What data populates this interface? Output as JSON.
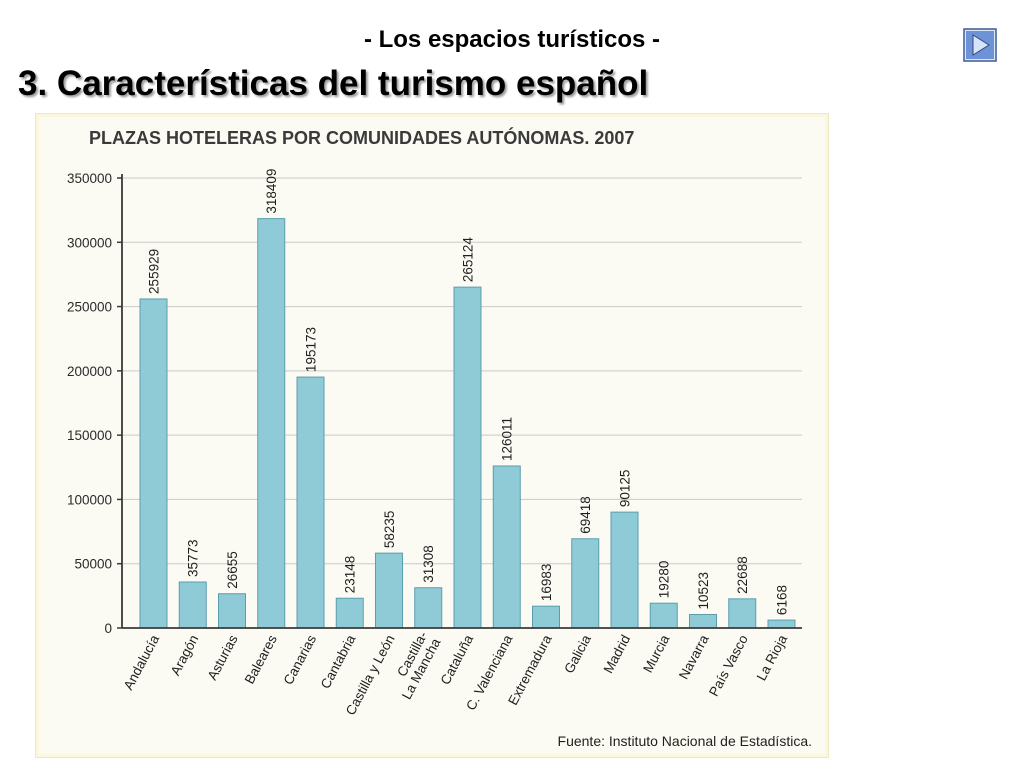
{
  "slide": {
    "subtitle": "- Los espacios turísticos -",
    "title": "3. Características del turismo español",
    "next_icon": "play-forward-icon"
  },
  "colors": {
    "bar_fill": "#8fcbd7",
    "bar_stroke": "#5b9eae",
    "grid": "#c9c9c9",
    "axis": "#3a3a3a",
    "button_fill": "#6d93d6",
    "button_border": "#3c5a96"
  },
  "chart_data": {
    "type": "bar",
    "title": "PLAZAS HOTELERAS POR COMUNIDADES AUTÓNOMAS. 2007",
    "xlabel": "",
    "ylabel": "",
    "ylim": [
      0,
      350000
    ],
    "yticks": [
      0,
      50000,
      100000,
      150000,
      200000,
      250000,
      300000,
      350000
    ],
    "ytick_labels": [
      "0",
      "50000",
      "100000",
      "150000",
      "200000",
      "250000",
      "300000",
      "350000"
    ],
    "grid": true,
    "categories": [
      "Andalucía",
      "Aragón",
      "Asturias",
      "Baleares",
      "Canarias",
      "Cantabria",
      "Castilla y León",
      "Castilla-La Mancha",
      "Cataluña",
      "C. Valenciana",
      "Extremadura",
      "Galicia",
      "Madrid",
      "Murcia",
      "Navarra",
      "País Vasco",
      "La Rioja"
    ],
    "category_lines": [
      [
        "Andalucía"
      ],
      [
        "Aragón"
      ],
      [
        "Asturias"
      ],
      [
        "Baleares"
      ],
      [
        "Canarias"
      ],
      [
        "Cantabria"
      ],
      [
        "Castilla y León"
      ],
      [
        "Castilla-",
        "La Mancha"
      ],
      [
        "Cataluña"
      ],
      [
        "C. Valenciana"
      ],
      [
        "Extremadura"
      ],
      [
        "Galicia"
      ],
      [
        "Madrid"
      ],
      [
        "Murcia"
      ],
      [
        "Navarra"
      ],
      [
        "País Vasco"
      ],
      [
        "La Rioja"
      ]
    ],
    "values": [
      255929,
      35773,
      26655,
      318409,
      195173,
      23148,
      58235,
      31308,
      265124,
      126011,
      16983,
      69418,
      90125,
      19280,
      10523,
      22688,
      6168
    ],
    "value_labels": [
      "255929",
      "35773",
      "26655",
      "318409",
      "195173",
      "23148",
      "58235",
      "31308",
      "265124",
      "126011",
      "16983",
      "69418",
      "90125",
      "19280",
      "10523",
      "22688",
      "6168"
    ],
    "source": "Fuente: Instituto Nacional de Estadística."
  }
}
